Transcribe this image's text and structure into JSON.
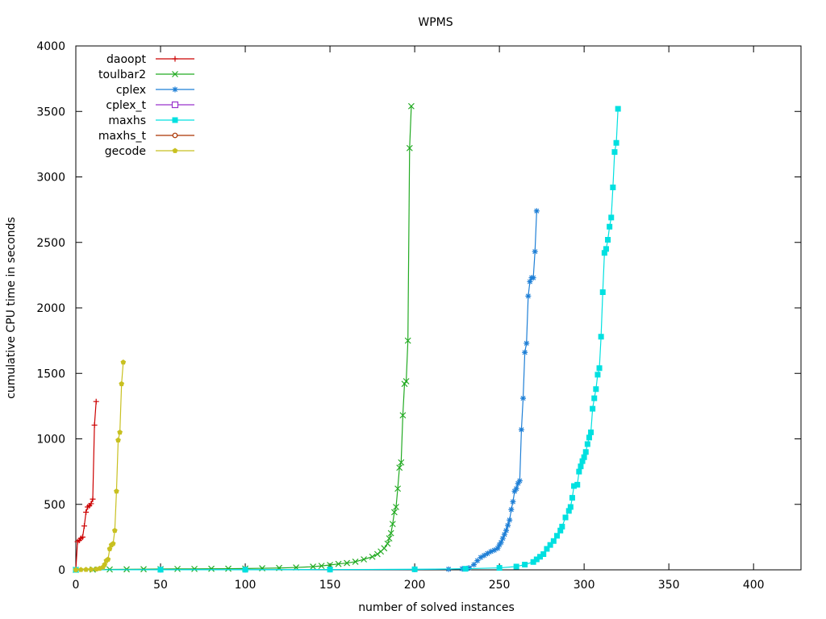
{
  "chart_data": {
    "type": "line",
    "title": "WPMS",
    "xlabel": "number of solved instances",
    "ylabel": "cumulative CPU time in seconds",
    "xlim": [
      0,
      428
    ],
    "ylim": [
      0,
      4000
    ],
    "xticks": [
      0,
      50,
      100,
      150,
      200,
      250,
      300,
      350,
      400
    ],
    "yticks": [
      0,
      500,
      1000,
      1500,
      2000,
      2500,
      3000,
      3500,
      4000
    ],
    "grid": false,
    "legend_position": "top-left",
    "series": [
      {
        "name": "daoopt",
        "color": "#cc0000",
        "marker": "plus",
        "points": [
          [
            0,
            0
          ],
          [
            1,
            215
          ],
          [
            2,
            225
          ],
          [
            3,
            240
          ],
          [
            4,
            250
          ],
          [
            5,
            335
          ],
          [
            6,
            440
          ],
          [
            7,
            480
          ],
          [
            8,
            490
          ],
          [
            9,
            505
          ],
          [
            10,
            540
          ],
          [
            11,
            1105
          ],
          [
            12,
            1285
          ]
        ]
      },
      {
        "name": "toulbar2",
        "color": "#22aa22",
        "marker": "x",
        "points": [
          [
            0,
            0
          ],
          [
            10,
            2
          ],
          [
            20,
            3
          ],
          [
            30,
            4
          ],
          [
            40,
            5
          ],
          [
            50,
            6
          ],
          [
            60,
            7
          ],
          [
            70,
            7
          ],
          [
            80,
            8
          ],
          [
            90,
            9
          ],
          [
            100,
            10
          ],
          [
            110,
            12
          ],
          [
            120,
            14
          ],
          [
            130,
            18
          ],
          [
            140,
            24
          ],
          [
            145,
            30
          ],
          [
            150,
            37
          ],
          [
            155,
            45
          ],
          [
            160,
            52
          ],
          [
            165,
            62
          ],
          [
            170,
            80
          ],
          [
            175,
            100
          ],
          [
            178,
            120
          ],
          [
            180,
            140
          ],
          [
            182,
            165
          ],
          [
            184,
            200
          ],
          [
            185,
            240
          ],
          [
            186,
            280
          ],
          [
            187,
            350
          ],
          [
            188,
            440
          ],
          [
            189,
            480
          ],
          [
            190,
            620
          ],
          [
            191,
            780
          ],
          [
            192,
            820
          ],
          [
            193,
            1180
          ],
          [
            194,
            1420
          ],
          [
            195,
            1440
          ],
          [
            196,
            1750
          ],
          [
            197,
            3220
          ],
          [
            198,
            3540
          ]
        ]
      },
      {
        "name": "cplex",
        "color": "#1e7fd6",
        "marker": "star",
        "points": [
          [
            0,
            0
          ],
          [
            50,
            1
          ],
          [
            100,
            1
          ],
          [
            150,
            2
          ],
          [
            200,
            3
          ],
          [
            220,
            5
          ],
          [
            228,
            8
          ],
          [
            232,
            15
          ],
          [
            235,
            40
          ],
          [
            237,
            70
          ],
          [
            239,
            95
          ],
          [
            241,
            110
          ],
          [
            243,
            125
          ],
          [
            245,
            140
          ],
          [
            247,
            150
          ],
          [
            249,
            165
          ],
          [
            250,
            190
          ],
          [
            251,
            210
          ],
          [
            252,
            240
          ],
          [
            253,
            270
          ],
          [
            254,
            300
          ],
          [
            255,
            340
          ],
          [
            256,
            380
          ],
          [
            257,
            460
          ],
          [
            258,
            520
          ],
          [
            259,
            600
          ],
          [
            260,
            620
          ],
          [
            261,
            660
          ],
          [
            262,
            680
          ],
          [
            263,
            1070
          ],
          [
            264,
            1310
          ],
          [
            265,
            1660
          ],
          [
            266,
            1730
          ],
          [
            267,
            2090
          ],
          [
            268,
            2200
          ],
          [
            269,
            2230
          ],
          [
            270,
            2230
          ],
          [
            271,
            2430
          ],
          [
            272,
            2740
          ]
        ]
      },
      {
        "name": "cplex_t",
        "color": "#9933cc",
        "marker": "open-square",
        "points": []
      },
      {
        "name": "maxhs",
        "color": "#00e0e0",
        "marker": "filled-square",
        "points": [
          [
            0,
            0
          ],
          [
            50,
            1
          ],
          [
            100,
            1
          ],
          [
            150,
            2
          ],
          [
            200,
            4
          ],
          [
            230,
            8
          ],
          [
            250,
            15
          ],
          [
            260,
            25
          ],
          [
            265,
            40
          ],
          [
            270,
            60
          ],
          [
            272,
            80
          ],
          [
            274,
            100
          ],
          [
            276,
            120
          ],
          [
            278,
            160
          ],
          [
            280,
            190
          ],
          [
            282,
            220
          ],
          [
            284,
            260
          ],
          [
            286,
            300
          ],
          [
            287,
            330
          ],
          [
            289,
            400
          ],
          [
            291,
            450
          ],
          [
            292,
            480
          ],
          [
            293,
            550
          ],
          [
            294,
            640
          ],
          [
            296,
            650
          ],
          [
            297,
            750
          ],
          [
            298,
            790
          ],
          [
            299,
            830
          ],
          [
            300,
            860
          ],
          [
            301,
            900
          ],
          [
            302,
            960
          ],
          [
            303,
            1010
          ],
          [
            304,
            1050
          ],
          [
            305,
            1230
          ],
          [
            306,
            1310
          ],
          [
            307,
            1380
          ],
          [
            308,
            1490
          ],
          [
            309,
            1540
          ],
          [
            310,
            1780
          ],
          [
            311,
            2120
          ],
          [
            312,
            2420
          ],
          [
            313,
            2450
          ],
          [
            314,
            2520
          ],
          [
            315,
            2620
          ],
          [
            316,
            2690
          ],
          [
            317,
            2920
          ],
          [
            318,
            3190
          ],
          [
            319,
            3260
          ],
          [
            320,
            3520
          ]
        ]
      },
      {
        "name": "maxhs_t",
        "color": "#aa3300",
        "marker": "open-circle",
        "points": []
      },
      {
        "name": "gecode",
        "color": "#c8c020",
        "marker": "filled-pentagon",
        "points": [
          [
            0,
            0
          ],
          [
            3,
            1
          ],
          [
            6,
            2
          ],
          [
            9,
            3
          ],
          [
            12,
            5
          ],
          [
            14,
            10
          ],
          [
            16,
            20
          ],
          [
            17,
            40
          ],
          [
            18,
            70
          ],
          [
            19,
            80
          ],
          [
            20,
            160
          ],
          [
            21,
            190
          ],
          [
            22,
            200
          ],
          [
            23,
            300
          ],
          [
            24,
            600
          ],
          [
            25,
            990
          ],
          [
            26,
            1050
          ],
          [
            27,
            1420
          ],
          [
            28,
            1585
          ]
        ]
      }
    ]
  }
}
